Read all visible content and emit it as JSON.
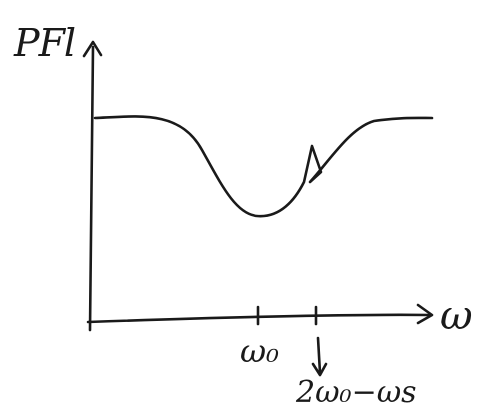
{
  "labels": {
    "y_axis": "PFl",
    "x_axis": "ω",
    "tick_center": "ω₀",
    "tick_harmonic": "2ω₀−ωs"
  }
}
